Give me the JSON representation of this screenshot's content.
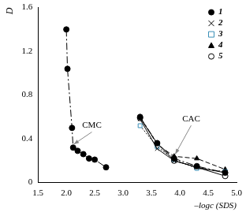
{
  "chart_data": {
    "type": "scatter",
    "x_label": "–logc (SDS)",
    "y_label": "D",
    "xlim": [
      1.5,
      5.0
    ],
    "xticks": [
      1.5,
      {
        "value": 2.0,
        "label": "2.0"
      },
      2.5,
      {
        "value": 3.0,
        "label": "3.0"
      },
      3.5,
      {
        "value": 4.0,
        "label": "4.0"
      },
      4.5,
      {
        "value": 5.0,
        "label": "5.0"
      }
    ],
    "ylim": [
      0,
      1.6
    ],
    "yticks": [
      0,
      0.4,
      0.8,
      1.2,
      1.6
    ],
    "grid": false,
    "legend": "top-right",
    "series": [
      {
        "name": "1",
        "color": "#000000",
        "marker": "circle_filled",
        "line_style": "dashdot",
        "x": [
          2.0,
          2.02,
          2.1,
          2.12,
          2.2,
          2.3,
          2.4,
          2.5,
          2.7,
          null,
          3.3,
          3.6,
          3.9,
          4.3,
          4.8
        ],
        "values": [
          1.4,
          1.04,
          0.5,
          0.32,
          0.29,
          0.26,
          0.22,
          0.21,
          0.14,
          null,
          0.6,
          0.36,
          0.22,
          0.15,
          0.09
        ]
      },
      {
        "name": "2",
        "color": "#000000",
        "marker": "cross",
        "line_style": "solid",
        "x": [
          3.3,
          3.6,
          3.9,
          4.3,
          4.8
        ],
        "values": [
          0.58,
          0.31,
          0.2,
          0.14,
          0.09
        ]
      },
      {
        "name": "3",
        "color": "#3a8fb7",
        "marker": "square_open",
        "line_style": "dotted",
        "x": [
          3.3,
          3.6,
          3.9,
          4.3,
          4.8
        ],
        "values": [
          0.52,
          0.33,
          0.21,
          0.13,
          0.1
        ]
      },
      {
        "name": "4",
        "color": "#000000",
        "marker": "triangle_filled",
        "line_style": "dashed",
        "x": [
          3.3,
          3.6,
          3.9,
          4.3,
          4.8
        ],
        "values": [
          0.6,
          0.35,
          0.24,
          0.22,
          0.12
        ]
      },
      {
        "name": "5",
        "color": "#000000",
        "marker": "circle_open",
        "line_style": "solid",
        "x": [
          3.3,
          3.6,
          3.9,
          4.3,
          4.8
        ],
        "values": [
          0.59,
          0.36,
          0.2,
          0.14,
          0.06
        ]
      }
    ],
    "annotations": [
      {
        "text": "CMC",
        "x": 2.45,
        "y": 0.52,
        "arrow_x": 2.13,
        "arrow_y": 0.35
      },
      {
        "text": "CAC",
        "x": 4.2,
        "y": 0.58,
        "arrow_x": 3.92,
        "arrow_y": 0.26
      }
    ]
  }
}
